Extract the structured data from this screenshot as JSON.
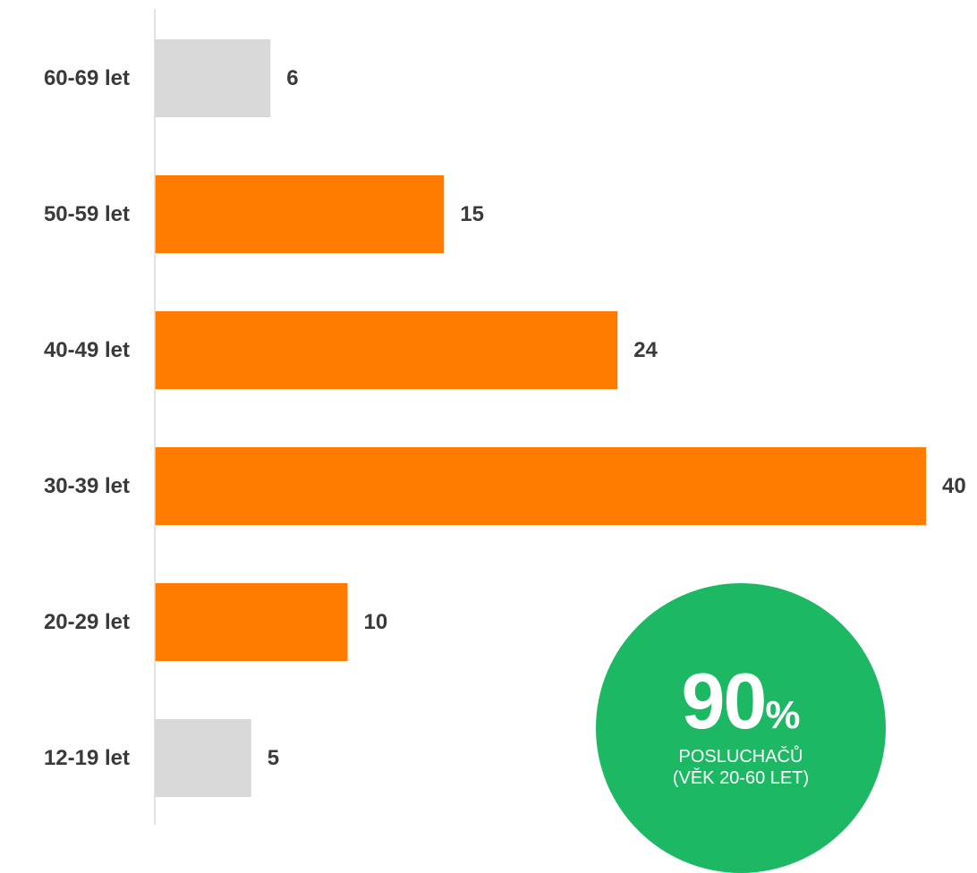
{
  "chart_data": {
    "type": "bar",
    "orientation": "horizontal",
    "categories": [
      "60-69 let",
      "50-59 let",
      "40-49 let",
      "30-39 let",
      "20-29 let",
      "12-19 let"
    ],
    "values": [
      6,
      15,
      24,
      40,
      10,
      5
    ],
    "value_labels": [
      "6",
      "15",
      "24",
      "40",
      "10",
      "5"
    ],
    "highlighted": [
      false,
      true,
      true,
      true,
      true,
      false
    ],
    "xlim": [
      0,
      40
    ],
    "colors": {
      "highlight": "#ff7c00",
      "muted": "#d9d9d9",
      "axis": "#d9d9d9",
      "label": "#3a3a3a"
    },
    "grid": false,
    "legend": "none"
  },
  "badge": {
    "value": "90",
    "unit": "%",
    "line1": "POSLUCHAČŮ",
    "line2": "(VĚK 20-60 LET)",
    "color": "#1db863"
  }
}
